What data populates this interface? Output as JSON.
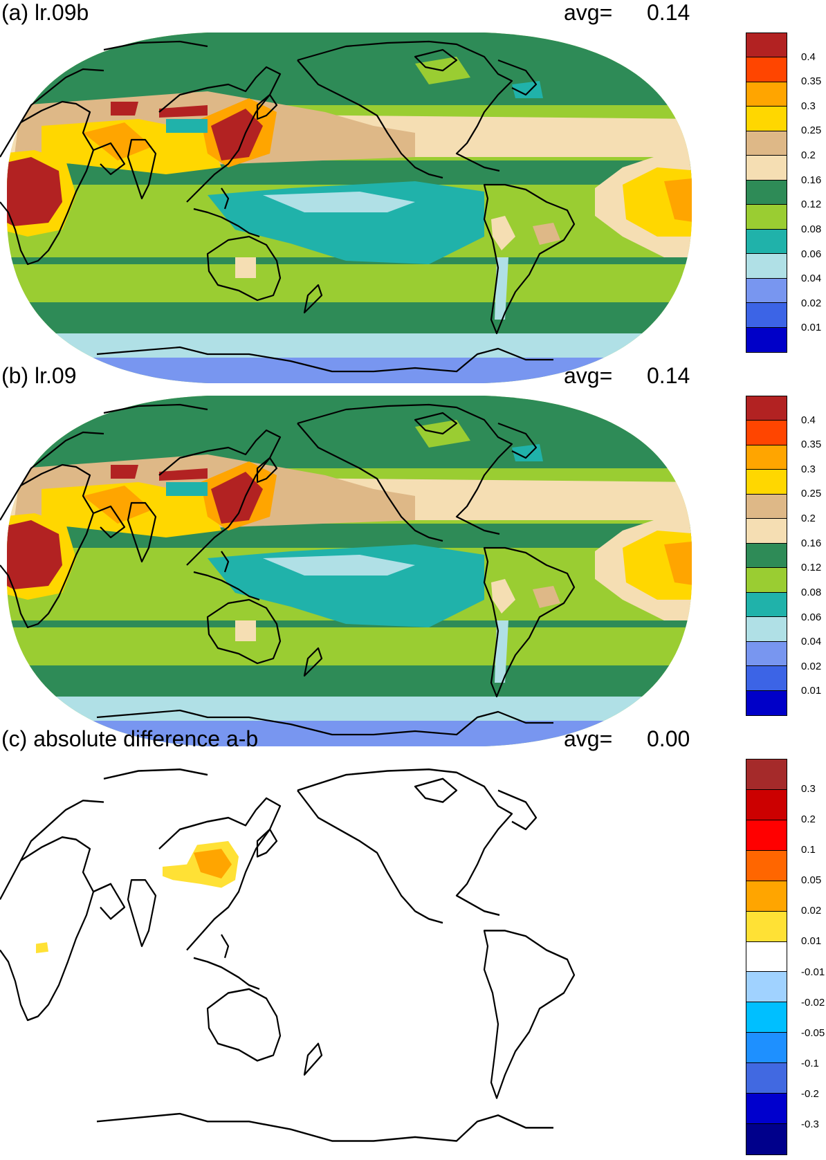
{
  "panels": [
    {
      "id": "a",
      "title": "(a) lr.09b",
      "avg_label": "avg=",
      "avg_value": "0.14",
      "colorbar": {
        "colors": [
          "#0000c8",
          "#3c64e6",
          "#7896f0",
          "#b0e0e6",
          "#20b2aa",
          "#9acd32",
          "#2e8b57",
          "#f5deb3",
          "#deb887",
          "#ffd700",
          "#ffa500",
          "#ff4500",
          "#b22222"
        ],
        "labels": [
          "0.01",
          "0.02",
          "0.04",
          "0.06",
          "0.08",
          "0.12",
          "0.16",
          "0.2",
          "0.25",
          "0.3",
          "0.35",
          "0.4"
        ]
      }
    },
    {
      "id": "b",
      "title": "(b) lr.09",
      "avg_label": "avg=",
      "avg_value": "0.14",
      "colorbar": {
        "colors": [
          "#0000c8",
          "#3c64e6",
          "#7896f0",
          "#b0e0e6",
          "#20b2aa",
          "#9acd32",
          "#2e8b57",
          "#f5deb3",
          "#deb887",
          "#ffd700",
          "#ffa500",
          "#ff4500",
          "#b22222"
        ],
        "labels": [
          "0.01",
          "0.02",
          "0.04",
          "0.06",
          "0.08",
          "0.12",
          "0.16",
          "0.2",
          "0.25",
          "0.3",
          "0.35",
          "0.4"
        ]
      }
    },
    {
      "id": "c",
      "title": "(c) absolute difference a-b",
      "avg_label": "avg=",
      "avg_value": "0.00",
      "colorbar": {
        "colors": [
          "#00008b",
          "#0000cd",
          "#4169e1",
          "#1e90ff",
          "#00bfff",
          "#a0d2ff",
          "#ffffff",
          "#ffe135",
          "#ffa500",
          "#ff6600",
          "#ff0000",
          "#cc0000",
          "#a52a2a"
        ],
        "labels": [
          "-0.3",
          "-0.2",
          "-0.1",
          "-0.05",
          "-0.02",
          "-0.01",
          "0.01",
          "0.02",
          "0.05",
          "0.1",
          "0.2",
          "0.3"
        ]
      }
    }
  ]
}
